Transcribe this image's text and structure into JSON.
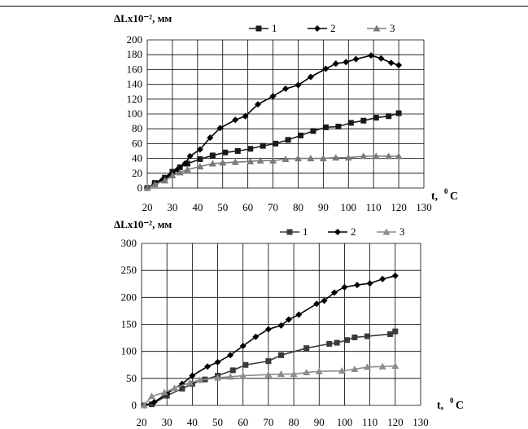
{
  "chart_data": [
    {
      "type": "line",
      "ylabel": "ΔLx10⁻², мм",
      "xlabel_main": "t,",
      "xlabel_sup": "0",
      "xlabel_unit": "C",
      "xlim": [
        20,
        130
      ],
      "ylim": [
        0,
        200
      ],
      "xticks": [
        20,
        30,
        40,
        50,
        60,
        70,
        80,
        90,
        100,
        110,
        120,
        130
      ],
      "yticks": [
        0,
        20,
        40,
        60,
        80,
        100,
        120,
        140,
        160,
        180,
        200
      ],
      "grid": true,
      "legend_position": "top-right",
      "series": [
        {
          "name": "1",
          "marker": "square",
          "color": "#1a1a1a",
          "points": [
            [
              20,
              0
            ],
            [
              23,
              7
            ],
            [
              27,
              14
            ],
            [
              30,
              22
            ],
            [
              33,
              28
            ],
            [
              36,
              33
            ],
            [
              41,
              39
            ],
            [
              46,
              44
            ],
            [
              51,
              48
            ],
            [
              56,
              50
            ],
            [
              61,
              53
            ],
            [
              66,
              57
            ],
            [
              71,
              60
            ],
            [
              76,
              65
            ],
            [
              81,
              71
            ],
            [
              86,
              77
            ],
            [
              91,
              82
            ],
            [
              96,
              83
            ],
            [
              101,
              88
            ],
            [
              106,
              91
            ],
            [
              111,
              95
            ],
            [
              116,
              97
            ],
            [
              120,
              101
            ]
          ]
        },
        {
          "name": "2",
          "marker": "diamond",
          "color": "#000000",
          "points": [
            [
              20,
              0
            ],
            [
              23,
              6
            ],
            [
              26,
              11
            ],
            [
              29,
              17
            ],
            [
              32,
              25
            ],
            [
              35,
              33
            ],
            [
              37,
              43
            ],
            [
              41,
              52
            ],
            [
              45,
              68
            ],
            [
              49,
              81
            ],
            [
              55,
              92
            ],
            [
              59,
              97
            ],
            [
              64,
              113
            ],
            [
              70,
              124
            ],
            [
              75,
              134
            ],
            [
              80,
              139
            ],
            [
              85,
              150
            ],
            [
              91,
              161
            ],
            [
              95,
              168
            ],
            [
              99,
              170
            ],
            [
              103,
              174
            ],
            [
              109,
              179
            ],
            [
              113,
              175
            ],
            [
              117,
              169
            ],
            [
              120,
              166
            ]
          ]
        },
        {
          "name": "3",
          "marker": "triangle",
          "color": "#7a7a7a",
          "points": [
            [
              20,
              0
            ],
            [
              23,
              5
            ],
            [
              27,
              10
            ],
            [
              30,
              17
            ],
            [
              33,
              21
            ],
            [
              36,
              25
            ],
            [
              41,
              29
            ],
            [
              46,
              33
            ],
            [
              50,
              34
            ],
            [
              55,
              35
            ],
            [
              61,
              36
            ],
            [
              65,
              37
            ],
            [
              70,
              37
            ],
            [
              75,
              39
            ],
            [
              80,
              40
            ],
            [
              85,
              40
            ],
            [
              90,
              40
            ],
            [
              95,
              41
            ],
            [
              100,
              41
            ],
            [
              106,
              43
            ],
            [
              111,
              43
            ],
            [
              116,
              43
            ],
            [
              120,
              43
            ]
          ]
        }
      ]
    },
    {
      "type": "line",
      "ylabel": "ΔLx10⁻², мм",
      "xlabel_main": "t,",
      "xlabel_sup": "0",
      "xlabel_unit": "C",
      "xlim": [
        20,
        130
      ],
      "ylim": [
        0,
        300
      ],
      "xticks": [
        20,
        30,
        40,
        50,
        60,
        70,
        80,
        90,
        100,
        110,
        120,
        130
      ],
      "yticks": [
        0,
        50,
        100,
        150,
        200,
        250,
        300
      ],
      "grid": true,
      "legend_position": "top-right",
      "series": [
        {
          "name": "1",
          "marker": "square",
          "color": "#3a3a3a",
          "points": [
            [
              21,
              0
            ],
            [
              24,
              2
            ],
            [
              30,
              18
            ],
            [
              36,
              31
            ],
            [
              40,
              40
            ],
            [
              45,
              48
            ],
            [
              50,
              55
            ],
            [
              56,
              65
            ],
            [
              61,
              75
            ],
            [
              70,
              82
            ],
            [
              75,
              93
            ],
            [
              85,
              106
            ],
            [
              94,
              114
            ],
            [
              97,
              116
            ],
            [
              101,
              121
            ],
            [
              104,
              126
            ],
            [
              109,
              128
            ],
            [
              118,
              132
            ],
            [
              120,
              137
            ]
          ]
        },
        {
          "name": "2",
          "marker": "diamond",
          "color": "#000000",
          "points": [
            [
              21,
              0
            ],
            [
              25,
              6
            ],
            [
              30,
              22
            ],
            [
              36,
              40
            ],
            [
              40,
              55
            ],
            [
              46,
              72
            ],
            [
              50,
              80
            ],
            [
              55,
              93
            ],
            [
              60,
              110
            ],
            [
              65,
              127
            ],
            [
              70,
              141
            ],
            [
              75,
              148
            ],
            [
              78,
              159
            ],
            [
              82,
              168
            ],
            [
              89,
              188
            ],
            [
              92,
              194
            ],
            [
              96,
              209
            ],
            [
              100,
              219
            ],
            [
              105,
              223
            ],
            [
              110,
              226
            ],
            [
              115,
              234
            ],
            [
              120,
              240
            ]
          ]
        },
        {
          "name": "3",
          "marker": "triangle",
          "color": "#8c8c8c",
          "points": [
            [
              21,
              0
            ],
            [
              24,
              17
            ],
            [
              29,
              24
            ],
            [
              33,
              32
            ],
            [
              39,
              42
            ],
            [
              43,
              47
            ],
            [
              50,
              51
            ],
            [
              55,
              53
            ],
            [
              60,
              55
            ],
            [
              70,
              57
            ],
            [
              75,
              58
            ],
            [
              80,
              58
            ],
            [
              85,
              61
            ],
            [
              90,
              63
            ],
            [
              99,
              64
            ],
            [
              104,
              67
            ],
            [
              109,
              71
            ],
            [
              115,
              72
            ],
            [
              120,
              73
            ]
          ]
        }
      ]
    }
  ]
}
